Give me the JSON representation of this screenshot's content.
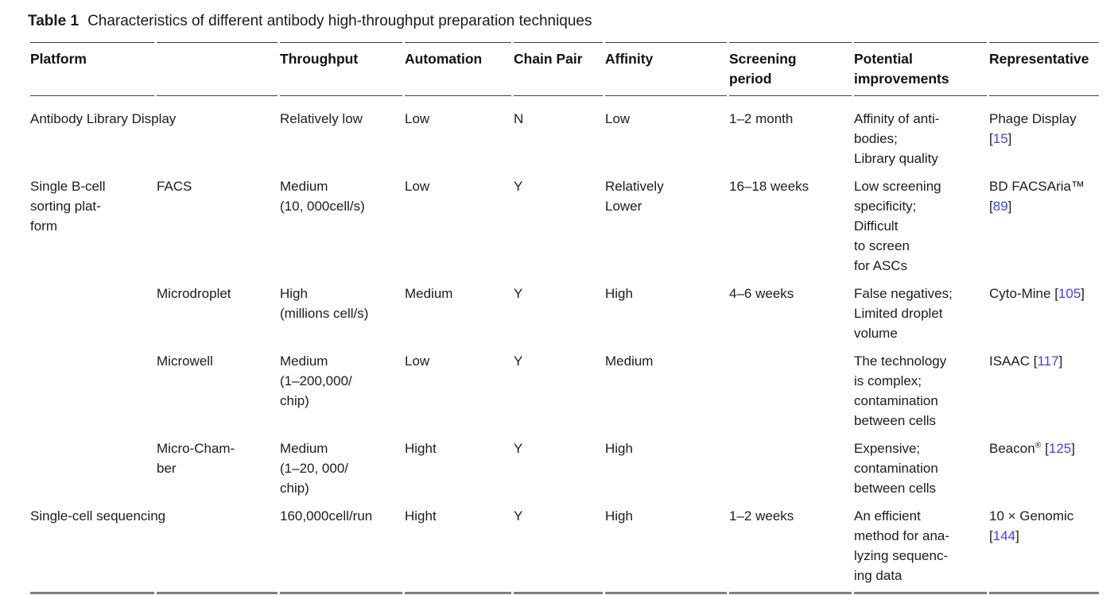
{
  "title": {
    "label": "Table 1",
    "caption": "Characteristics of different antibody high-throughput preparation techniques"
  },
  "colors": {
    "citation_link": "#4343db",
    "header_rule": "#3d3d3d",
    "bottom_rule": "#7f7f7f"
  },
  "table": {
    "headers": {
      "platform": "Platform",
      "platform_sub": "",
      "throughput": "Throughput",
      "automation": "Automation",
      "chain_pair": "Chain Pair",
      "affinity": "Affinity",
      "screening_period": "Screening\nperiod",
      "potential_improvements": "Potential\nimprovements",
      "representative": "Representative"
    },
    "rows": [
      {
        "platform": "Antibody Library Display",
        "platform_sub": "",
        "throughput": "Relatively low",
        "automation": "Low",
        "chain_pair": "N",
        "affinity": "Low",
        "screening_period": "1–2 month",
        "potential_improvements": "Affinity of anti-\nbodies;\nLibrary quality",
        "representative": {
          "name": "Phage Display",
          "sup": "",
          "sep": "\n",
          "ref": "15"
        }
      },
      {
        "platform": "Single B-cell\nsorting plat-\nform",
        "platform_sub": "FACS",
        "throughput": "Medium\n(10, 000cell/s)",
        "automation": "Low",
        "chain_pair": "Y",
        "affinity": "Relatively\nLower",
        "screening_period": "16–18 weeks",
        "potential_improvements": "Low screening\nspecificity;\nDifficult\nto screen\nfor ASCs",
        "representative": {
          "name": "BD FACSAria™",
          "sup": "",
          "sep": "\n",
          "ref": "89"
        }
      },
      {
        "platform": "",
        "platform_sub": "Microdroplet",
        "throughput": "High\n(millions cell/s)",
        "automation": "Medium",
        "chain_pair": "Y",
        "affinity": "High",
        "screening_period": "4–6 weeks",
        "potential_improvements": "False negatives;\nLimited droplet\nvolume",
        "representative": {
          "name": "Cyto-Mine",
          "sup": "",
          "sep": " ",
          "ref": "105"
        }
      },
      {
        "platform": "",
        "platform_sub": "Microwell",
        "throughput": "Medium\n(1–200,000/\nchip)",
        "automation": "Low",
        "chain_pair": "Y",
        "affinity": "Medium",
        "screening_period": "",
        "potential_improvements": "The technology\nis complex;\ncontamination\nbetween cells",
        "representative": {
          "name": "ISAAC",
          "sup": "",
          "sep": " ",
          "ref": "117"
        }
      },
      {
        "platform": "",
        "platform_sub": "Micro-Cham-\nber",
        "throughput": "Medium\n(1–20, 000/\nchip)",
        "automation": "Hight",
        "chain_pair": "Y",
        "affinity": "High",
        "screening_period": "",
        "potential_improvements": "Expensive;\ncontamination\nbetween cells",
        "representative": {
          "name": "Beacon",
          "sup": "®",
          "sep": " ",
          "ref": "125"
        }
      },
      {
        "platform": "Single-cell sequencing",
        "platform_sub": "",
        "throughput": "160,000cell/run",
        "automation": "Hight",
        "chain_pair": "Y",
        "affinity": "High",
        "screening_period": "1–2 weeks",
        "potential_improvements": "An efficient\nmethod for ana-\nlyzing sequenc-\ning data",
        "representative": {
          "name": "10 × Genomic",
          "sup": "",
          "sep": "\n",
          "ref": "144"
        }
      }
    ]
  }
}
